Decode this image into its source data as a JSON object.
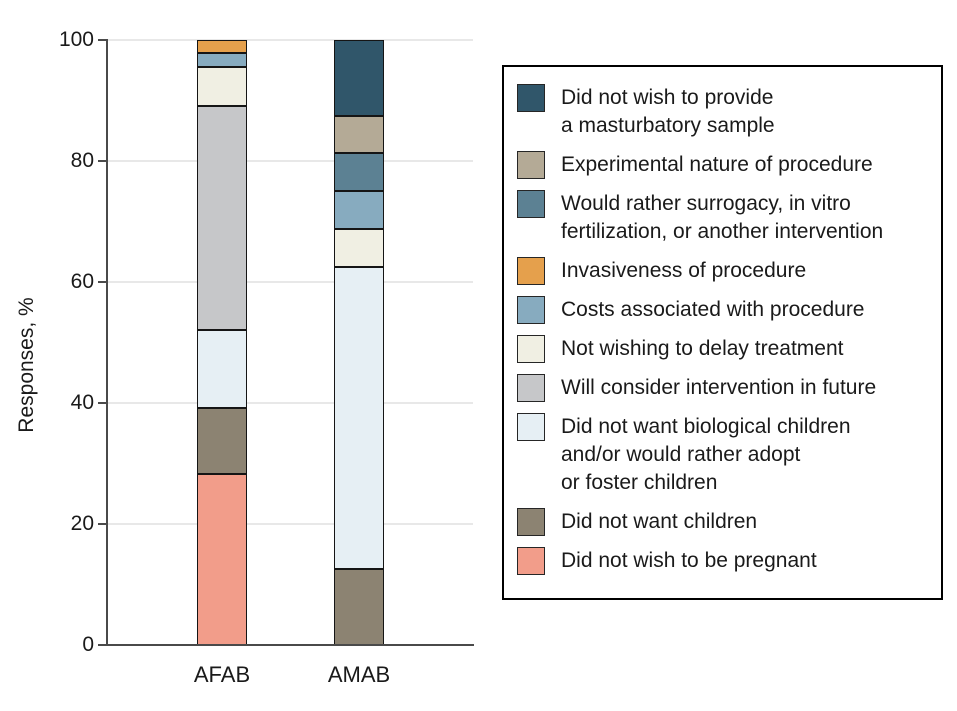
{
  "chart_data": {
    "type": "bar",
    "stacked": true,
    "title": "",
    "xlabel": "",
    "ylabel": "Responses, %",
    "ylim": [
      0,
      100
    ],
    "yticks": [
      0,
      20,
      40,
      60,
      80,
      100
    ],
    "grid": true,
    "legend_position": "right",
    "categories": [
      "AFAB",
      "AMAB"
    ],
    "series": [
      {
        "name": "Did not wish to provide\na masturbatory sample",
        "color": "#30566a",
        "values": [
          0,
          12.5
        ]
      },
      {
        "name": "Experimental nature of procedure",
        "color": "#b4aa96",
        "values": [
          0,
          6.25
        ]
      },
      {
        "name": "Would rather surrogacy, in vitro\nfertilization, or another intervention",
        "color": "#5c8193",
        "values": [
          0,
          6.25
        ]
      },
      {
        "name": "Invasiveness of procedure",
        "color": "#e5a04c",
        "values": [
          2.2,
          0
        ]
      },
      {
        "name": "Costs associated with procedure",
        "color": "#87abbf",
        "values": [
          2.2,
          6.25
        ]
      },
      {
        "name": "Not wishing to delay treatment",
        "color": "#f0efe3",
        "values": [
          6.5,
          6.25
        ]
      },
      {
        "name": "Will consider intervention in future",
        "color": "#c6c7c9",
        "values": [
          37,
          0
        ]
      },
      {
        "name": "Did not want biological children\nand/or would rather adopt\nor foster children",
        "color": "#e6eff4",
        "values": [
          13,
          50
        ]
      },
      {
        "name": "Did not want children",
        "color": "#8c8372",
        "values": [
          10.9,
          12.5
        ]
      },
      {
        "name": "Did not wish to be pregnant",
        "color": "#f29d8a",
        "values": [
          28.2,
          0
        ]
      }
    ]
  }
}
